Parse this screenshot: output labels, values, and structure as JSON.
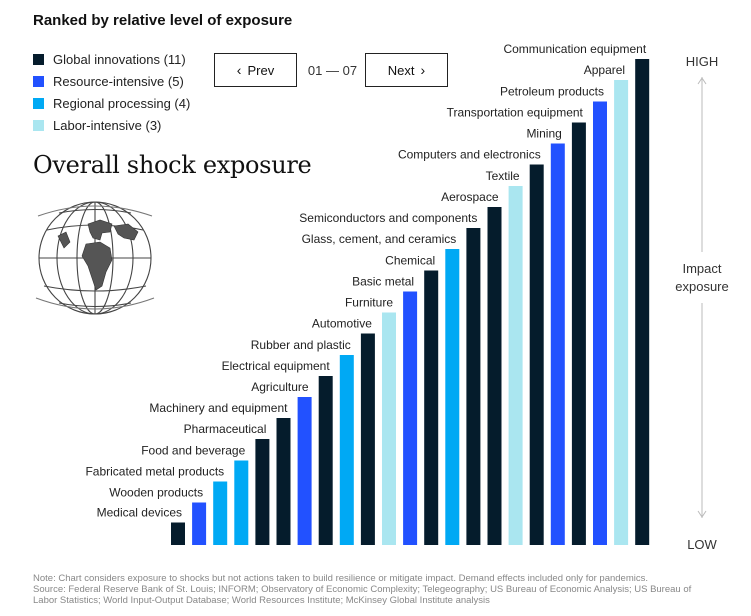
{
  "heading": "Ranked by relative level of exposure",
  "legend": [
    {
      "label": "Global innovations (11)",
      "color": "#051c2c"
    },
    {
      "label": "Resource-intensive (5)",
      "color": "#2251ff"
    },
    {
      "label": "Regional processing (4)",
      "color": "#00a9f4"
    },
    {
      "label": "Labor-intensive (3)",
      "color": "#aae6f0"
    }
  ],
  "pager": {
    "prev_label": "Prev",
    "next_label": "Next",
    "indicator": "01 — 07"
  },
  "chart_data": {
    "type": "bar",
    "title": "Overall shock exposure",
    "y_axis_title": "Impact exposure",
    "y_high_label": "HIGH",
    "y_low_label": "LOW",
    "ylim": [
      0,
      100
    ],
    "grid": false,
    "legend_placement": "top-left",
    "series_colors": {
      "Global innovations": "#051c2c",
      "Resource-intensive": "#2251ff",
      "Regional processing": "#00a9f4",
      "Labor-intensive": "#aae6f0"
    },
    "bars": [
      {
        "category": "Medical devices",
        "group": "Global innovations",
        "value": 4.5
      },
      {
        "category": "Wooden products",
        "group": "Resource-intensive",
        "value": 8.5
      },
      {
        "category": "Fabricated metal products",
        "group": "Regional processing",
        "value": 12.7
      },
      {
        "category": "Food and beverage",
        "group": "Regional processing",
        "value": 16.9
      },
      {
        "category": "Pharmaceutical",
        "group": "Global innovations",
        "value": 21.2
      },
      {
        "category": "Machinery and equipment",
        "group": "Global innovations",
        "value": 25.4
      },
      {
        "category": "Agriculture",
        "group": "Resource-intensive",
        "value": 29.6
      },
      {
        "category": "Electrical equipment",
        "group": "Global innovations",
        "value": 33.8
      },
      {
        "category": "Rubber and plastic",
        "group": "Regional processing",
        "value": 38.0
      },
      {
        "category": "Automotive",
        "group": "Global innovations",
        "value": 42.3
      },
      {
        "category": "Furniture",
        "group": "Labor-intensive",
        "value": 46.5
      },
      {
        "category": "Basic metal",
        "group": "Resource-intensive",
        "value": 50.7
      },
      {
        "category": "Chemical",
        "group": "Global innovations",
        "value": 54.9
      },
      {
        "category": "Glass, cement, and ceramics",
        "group": "Regional processing",
        "value": 59.2
      },
      {
        "category": "Semiconductors and components",
        "group": "Global innovations",
        "value": 63.4
      },
      {
        "category": "Aerospace",
        "group": "Global innovations",
        "value": 67.6
      },
      {
        "category": "Textile",
        "group": "Labor-intensive",
        "value": 71.8
      },
      {
        "category": "Computers and electronics",
        "group": "Global innovations",
        "value": 76.1
      },
      {
        "category": "Mining",
        "group": "Resource-intensive",
        "value": 80.3
      },
      {
        "category": "Transportation equipment",
        "group": "Global innovations",
        "value": 84.5
      },
      {
        "category": "Petroleum products",
        "group": "Resource-intensive",
        "value": 88.7
      },
      {
        "category": "Apparel",
        "group": "Labor-intensive",
        "value": 93.0
      },
      {
        "category": "Communication equipment",
        "group": "Global innovations",
        "value": 97.2
      }
    ]
  },
  "note": {
    "line1": "Note: Chart considers exposure to shocks but not actions taken to build resilience or mitigate impact. Demand effects included only for pandemics.",
    "line2": "Source: Federal Reserve Bank of St. Louis; INFORM; Observatory of Economic Complexity; Telegeography; US Bureau of Economic Analysis; US Bureau of",
    "line3": "Labor Statistics; World Input-Output Database; World Resources Institute; McKinsey Global Institute analysis"
  }
}
